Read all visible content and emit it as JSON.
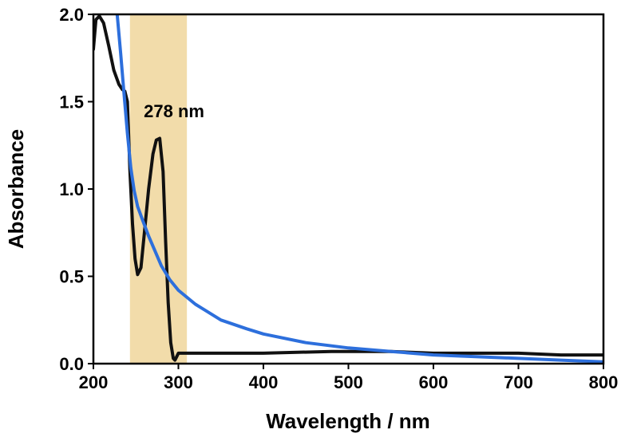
{
  "chart_data": {
    "type": "line",
    "xlabel": "Wavelength / nm",
    "ylabel": "Absorbance",
    "xlim": [
      200,
      800
    ],
    "ylim": [
      0.0,
      2.0
    ],
    "xticks": [
      200,
      300,
      400,
      500,
      600,
      700,
      800
    ],
    "yticks": [
      0.0,
      0.5,
      1.0,
      1.5,
      2.0
    ],
    "ytick_labels": [
      "0.0",
      "0.5",
      "1.0",
      "1.5",
      "2.0"
    ],
    "grid": false,
    "highlight_band": {
      "x": [
        243,
        310
      ],
      "color": "#f2dcaa"
    },
    "annotation": {
      "text": "278 nm",
      "x": 278,
      "y": 1.41
    },
    "series": [
      {
        "color": "#111111",
        "x": [
          200,
          203,
          207,
          212,
          218,
          224,
          230,
          234,
          237,
          240,
          243,
          246,
          249,
          252,
          256,
          260,
          265,
          270,
          274,
          278,
          282,
          285,
          288,
          291,
          294,
          296,
          298,
          300,
          305,
          320,
          400,
          480,
          550,
          600,
          650,
          700,
          750,
          800
        ],
        "y": [
          1.8,
          1.97,
          1.99,
          1.95,
          1.82,
          1.68,
          1.6,
          1.57,
          1.56,
          1.5,
          1.1,
          0.8,
          0.6,
          0.51,
          0.55,
          0.75,
          1.0,
          1.2,
          1.28,
          1.29,
          1.1,
          0.7,
          0.35,
          0.12,
          0.03,
          0.02,
          0.04,
          0.06,
          0.06,
          0.06,
          0.06,
          0.07,
          0.07,
          0.06,
          0.06,
          0.06,
          0.05,
          0.05
        ]
      },
      {
        "color": "#2d6fdc",
        "x": [
          228,
          232,
          236,
          240,
          244,
          248,
          252,
          258,
          265,
          272,
          280,
          290,
          300,
          320,
          350,
          380,
          400,
          450,
          500,
          550,
          600,
          650,
          700,
          750,
          800
        ],
        "y": [
          2.0,
          1.78,
          1.55,
          1.32,
          1.12,
          0.99,
          0.9,
          0.82,
          0.73,
          0.65,
          0.56,
          0.48,
          0.42,
          0.34,
          0.25,
          0.2,
          0.17,
          0.12,
          0.09,
          0.07,
          0.05,
          0.04,
          0.03,
          0.02,
          0.01
        ]
      }
    ]
  }
}
